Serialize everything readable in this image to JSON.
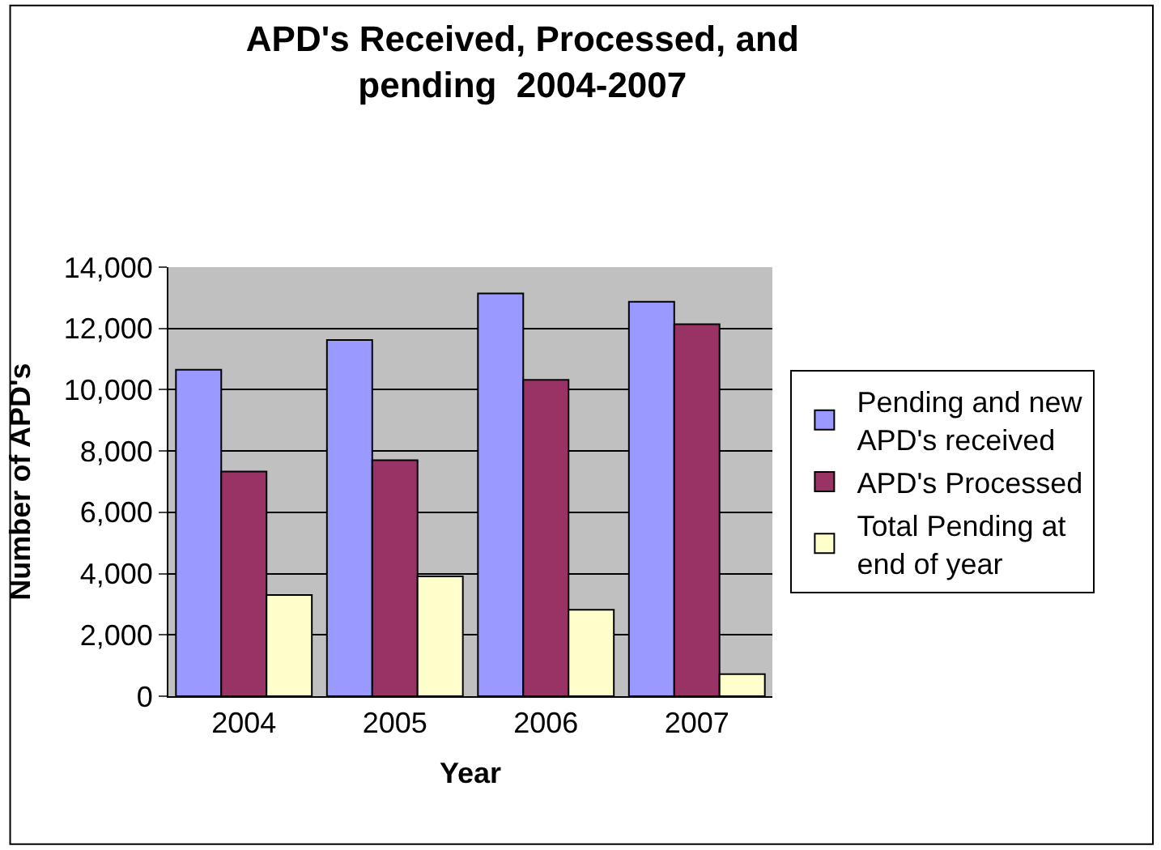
{
  "chart_data": {
    "type": "bar",
    "title": "APD's Received, Processed, and\npending  2004-2007",
    "xlabel": "Year",
    "ylabel": "Number of APD's",
    "categories": [
      "2004",
      "2005",
      "2006",
      "2007"
    ],
    "series": [
      {
        "name": "Pending and new\nAPD's received",
        "color": "#9999ff",
        "values": [
          10650,
          11620,
          13140,
          12870
        ]
      },
      {
        "name": "APD's Processed",
        "color": "#993366",
        "values": [
          7330,
          7700,
          10320,
          12140
        ]
      },
      {
        "name": "Total Pending at\nend of year",
        "color": "#ffffcc",
        "values": [
          3300,
          3910,
          2820,
          720
        ]
      }
    ],
    "ylim": [
      0,
      14000
    ],
    "yticks": [
      {
        "value": 0,
        "label": "0"
      },
      {
        "value": 2000,
        "label": "2,000"
      },
      {
        "value": 4000,
        "label": "4,000"
      },
      {
        "value": 6000,
        "label": "6,000"
      },
      {
        "value": 8000,
        "label": "8,000"
      },
      {
        "value": 10000,
        "label": "10,000"
      },
      {
        "value": 12000,
        "label": "12,000"
      },
      {
        "value": 14000,
        "label": "14,000"
      }
    ],
    "grid": "y",
    "legend": "right"
  }
}
